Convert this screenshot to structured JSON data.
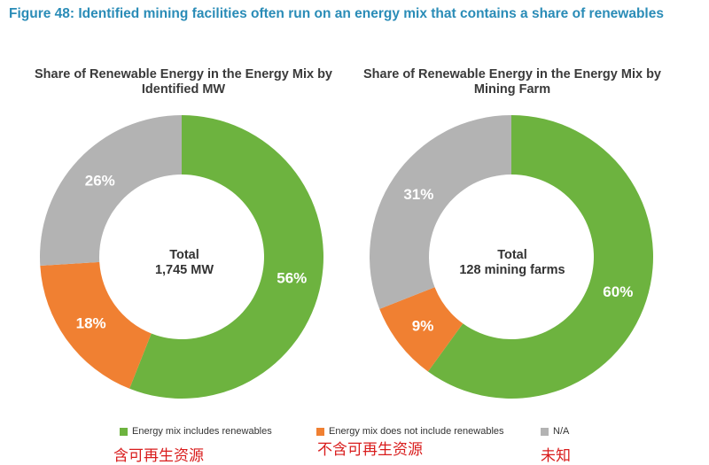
{
  "figure_title": "Figure 48: Identified mining facilities often run on an energy mix that contains a share of renewables",
  "chart_data": [
    {
      "type": "pie",
      "title": "Share of Renewable Energy in the Energy Mix by Identified MW",
      "center_label": [
        "Total",
        "1,745 MW"
      ],
      "categories": [
        "Energy mix includes renewables",
        "Energy mix does not include renewables",
        "N/A"
      ],
      "values": [
        56,
        18,
        26
      ],
      "value_labels": [
        "56%",
        "18%",
        "26%"
      ],
      "colors": [
        "#6db33f",
        "#f08032",
        "#b3b3b3"
      ]
    },
    {
      "type": "pie",
      "title": "Share of Renewable Energy in the Energy Mix by Mining Farm",
      "center_label": [
        "Total",
        "128 mining farms"
      ],
      "categories": [
        "Energy mix includes renewables",
        "Energy mix does not include renewables",
        "N/A"
      ],
      "values": [
        60,
        9,
        31
      ],
      "value_labels": [
        "60%",
        "9%",
        "31%"
      ],
      "colors": [
        "#6db33f",
        "#f08032",
        "#b3b3b3"
      ]
    }
  ],
  "legend": [
    {
      "label": "Energy mix includes renewables",
      "color": "#6db33f"
    },
    {
      "label": "Energy mix does not include renewables",
      "color": "#f08032"
    },
    {
      "label": "N/A",
      "color": "#b3b3b3"
    }
  ],
  "annotations": [
    "含可再生资源",
    "不含可再生资源",
    "未知"
  ]
}
